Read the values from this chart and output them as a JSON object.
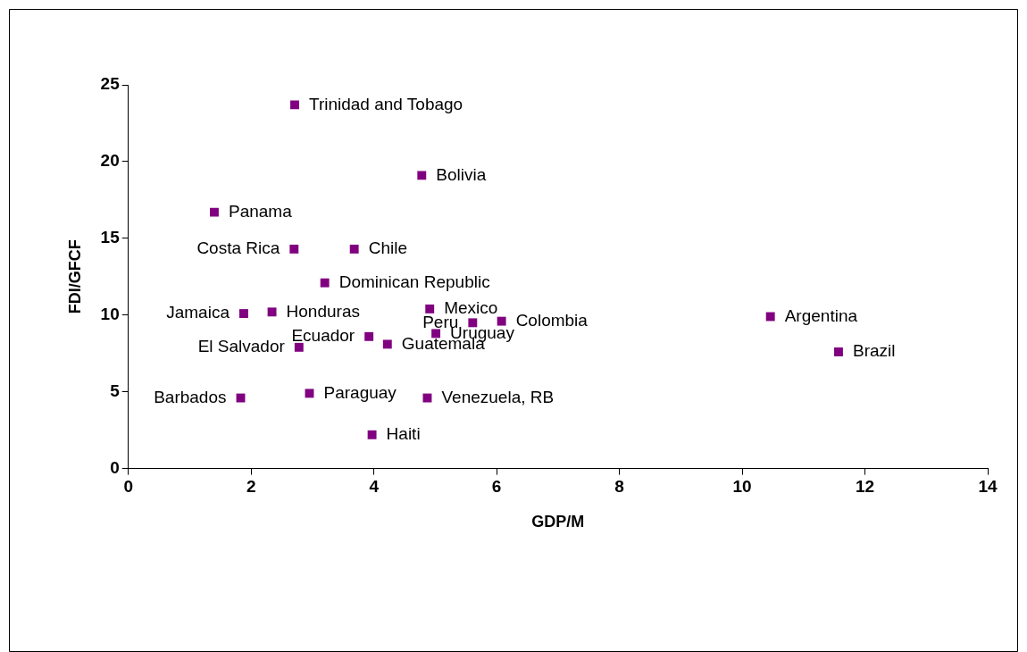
{
  "chart_data": {
    "type": "scatter",
    "xlabel": "GDP/M",
    "ylabel": "FDI/GFCF",
    "x": [
      2.71,
      4.78,
      1.4,
      2.7,
      3.68,
      3.2,
      1.88,
      2.34,
      4.91,
      6.08,
      10.46,
      5.61,
      5.01,
      3.92,
      4.22,
      2.78,
      11.57,
      1.83,
      2.95,
      4.87,
      3.97
    ],
    "series": [
      {
        "color": "#800080",
        "values": [
          23.7,
          19.1,
          16.7,
          14.3,
          14.3,
          12.1,
          10.1,
          10.2,
          10.4,
          9.6,
          9.9,
          9.5,
          8.8,
          8.6,
          8.1,
          7.9,
          7.6,
          4.6,
          4.9,
          4.6,
          2.2
        ],
        "value_labels": [
          "Trinidad and Tobago",
          "Bolivia",
          "Panama",
          "Costa Rica",
          "Chile",
          "Dominican Republic",
          "Jamaica",
          "Honduras",
          "Mexico",
          "Colombia",
          "Argentina",
          "Peru",
          "Uruguay",
          "Ecuador",
          "Guatemala",
          "El Salvador",
          "Brazil",
          "Barbados",
          "Paraguay",
          "Venezuela, RB",
          "Haiti"
        ]
      }
    ],
    "xlim": [
      0,
      14
    ],
    "xticks": [
      0,
      2,
      4,
      6,
      8,
      10,
      12,
      14
    ],
    "ylim": [
      0,
      25
    ],
    "yticks": [
      0,
      5,
      10,
      15,
      20,
      25
    ],
    "grid": false,
    "legend": false,
    "marker": "square"
  }
}
